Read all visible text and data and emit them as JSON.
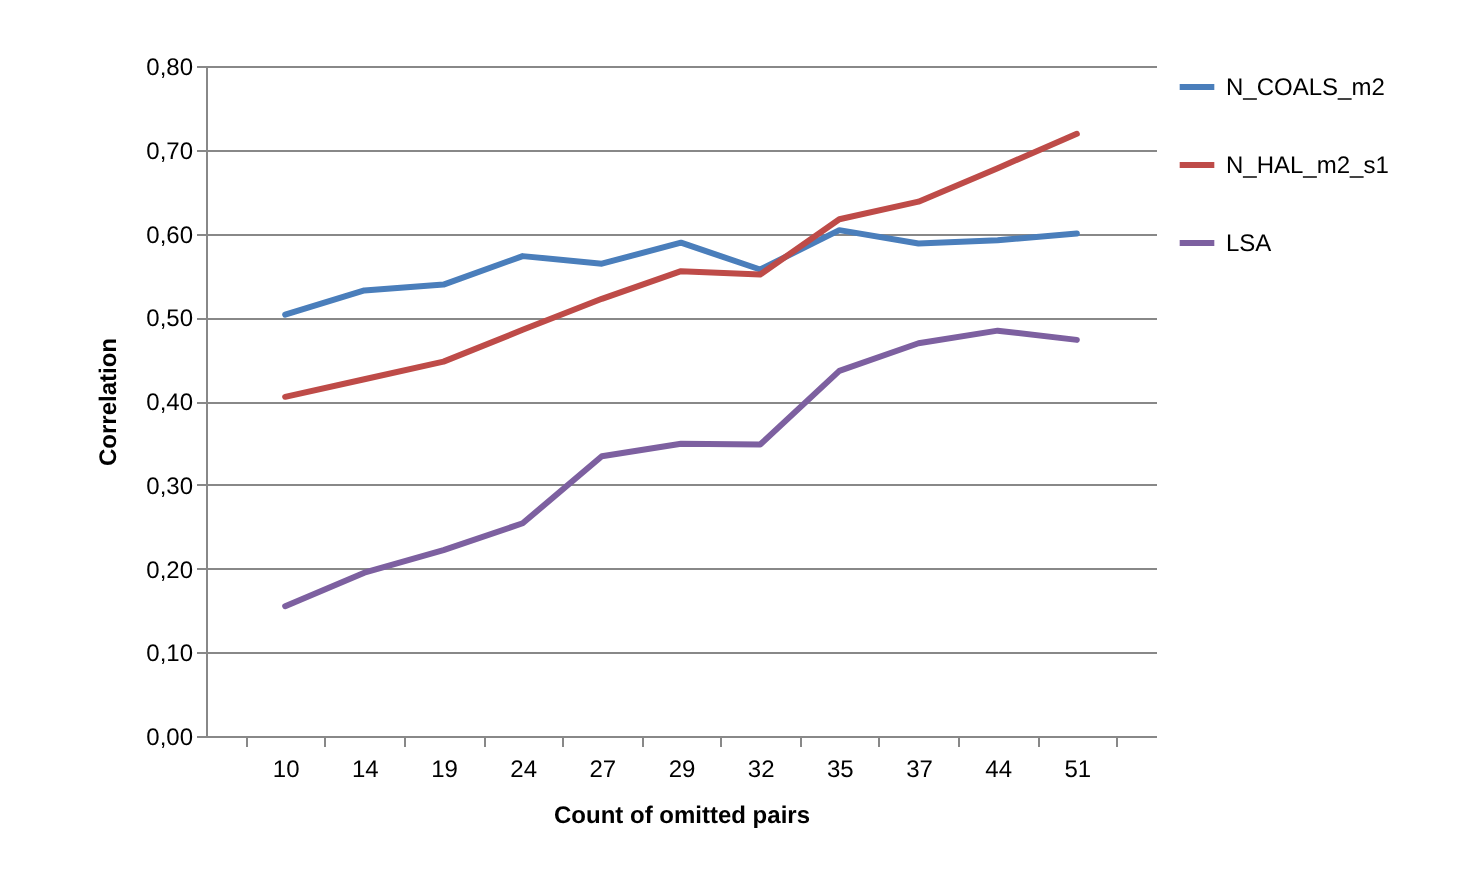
{
  "chart_data": {
    "type": "line",
    "xlabel": "Count of omitted pairs",
    "ylabel": "Correlation",
    "categories": [
      "10",
      "14",
      "19",
      "24",
      "27",
      "29",
      "32",
      "35",
      "37",
      "44",
      "51"
    ],
    "series": [
      {
        "name": "N_COALS_m2",
        "color": "#4a7ebb",
        "values": [
          0.503,
          0.532,
          0.539,
          0.573,
          0.564,
          0.589,
          0.557,
          0.604,
          0.588,
          0.592,
          0.6
        ]
      },
      {
        "name": "N_HAL_m2_s1",
        "color": "#be4b48",
        "values": [
          0.405,
          0.426,
          0.447,
          0.485,
          0.522,
          0.555,
          0.551,
          0.617,
          0.638,
          0.678,
          0.719
        ]
      },
      {
        "name": "LSA",
        "color": "#7d60a0",
        "values": [
          0.155,
          0.195,
          0.222,
          0.254,
          0.334,
          0.349,
          0.348,
          0.436,
          0.469,
          0.484,
          0.473
        ]
      }
    ],
    "ylim": [
      0,
      0.8
    ],
    "yticks": [
      {
        "value": 0,
        "label": "0,00"
      },
      {
        "value": 0.1,
        "label": "0,10"
      },
      {
        "value": 0.2,
        "label": "0,20"
      },
      {
        "value": 0.3,
        "label": "0,30"
      },
      {
        "value": 0.4,
        "label": "0,40"
      },
      {
        "value": 0.5,
        "label": "0,50"
      },
      {
        "value": 0.6,
        "label": "0,60"
      },
      {
        "value": 0.7,
        "label": "0,70"
      },
      {
        "value": 0.8,
        "label": "0,80"
      }
    ],
    "grid": "y",
    "legend": "right",
    "marker": "none",
    "line_style": "solid"
  }
}
